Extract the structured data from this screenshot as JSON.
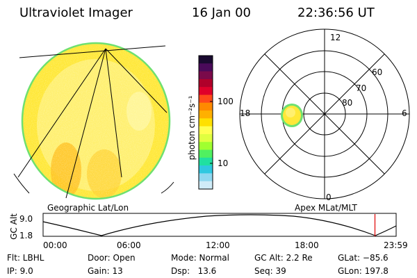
{
  "header": {
    "instrument": "Ultraviolet Imager",
    "date": "16 Jan 00",
    "time": "22:36:56 UT"
  },
  "left_panel": {
    "label": "Geographic Lat/Lon"
  },
  "right_panel": {
    "label": "Apex MLat/MLT",
    "mlt_labels": {
      "top": "12",
      "left": "18",
      "right": "6",
      "bottom": "0"
    },
    "mlat_labels": [
      "60",
      "70",
      "80"
    ]
  },
  "colorbar": {
    "unit": "photon cm⁻²s⁻¹",
    "ticks": [
      "100",
      "10"
    ],
    "colors": [
      "#1a0a30",
      "#4a0a5a",
      "#7a0a4a",
      "#b0002a",
      "#e0002a",
      "#ff4a1a",
      "#ff8a00",
      "#ffb000",
      "#ffe000",
      "#ffff50",
      "#e0ff40",
      "#a0ff30",
      "#50f060",
      "#20e0a0",
      "#30c8e0",
      "#90d8f0",
      "#d0ecf8"
    ]
  },
  "altitude_plot": {
    "ylabel": "GC Alt",
    "yticks": [
      "9.0",
      "1.8"
    ],
    "xticks": [
      "00:00",
      "06:00",
      "12:00",
      "18:00",
      "23:59"
    ],
    "current_fraction": 0.94
  },
  "footer": {
    "row1": [
      "Flt: LBHL",
      "Door: Open",
      "Mode: Normal",
      "GC Alt: 2.2 Re",
      "GLat: −85.6"
    ],
    "row2": [
      "IP: 9.0",
      "Gain: 13",
      "Dsp:   13.6",
      "Seq: 39",
      "GLon: 197.8"
    ]
  }
}
